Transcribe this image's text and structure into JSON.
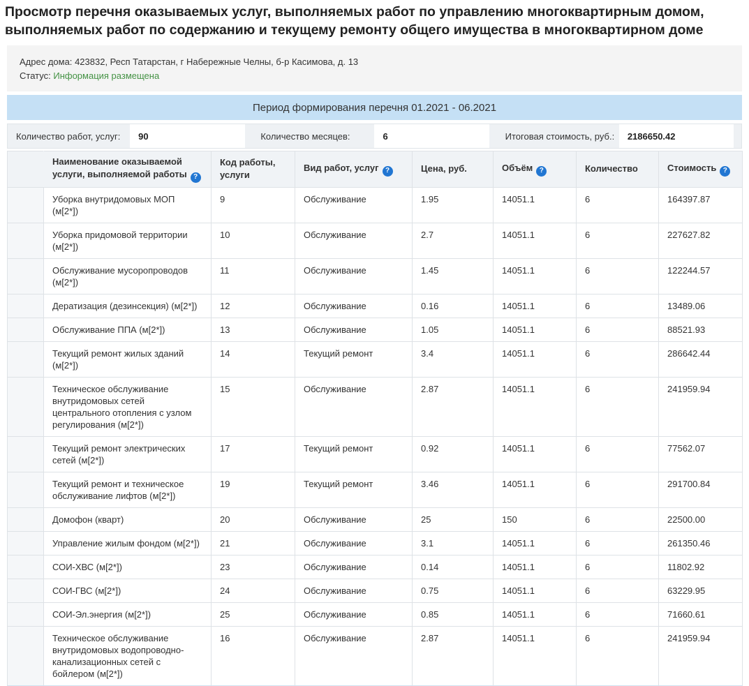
{
  "page": {
    "title": "Просмотр перечня оказываемых услуг, выполняемых работ по управлению многоквартирным домом, выполняемых работ по содержанию и текущему ремонту общего имущества в многоквартирном доме"
  },
  "info": {
    "address_label": "Адрес дома:",
    "address_value": "423832, Респ Татарстан, г Набережные Челны, б-р Касимова, д. 13",
    "status_label": "Статус:",
    "status_value": "Информация размещена"
  },
  "period": {
    "title": "Период формирования перечня 01.2021 - 06.2021"
  },
  "summary": {
    "fields": [
      {
        "label": "Количество работ, услуг:",
        "value": "90"
      },
      {
        "label": "Количество месяцев:",
        "value": "6"
      },
      {
        "label": "Итоговая стоимость, руб.:",
        "value": "2186650.42"
      }
    ]
  },
  "icons": {
    "help_glyph": "?"
  },
  "colors": {
    "period_band": "#c5e0f5",
    "help_icon": "#2176d2",
    "status_green": "#449244",
    "header_bg": "#f0f3f6"
  },
  "table": {
    "columns": [
      {
        "id": "name",
        "label": "Наименование оказываемой услуги, выполняемой работы",
        "help": true
      },
      {
        "id": "code",
        "label": "Код работы, услуги",
        "help": false
      },
      {
        "id": "type",
        "label": "Вид работ, услуг",
        "help": true
      },
      {
        "id": "price",
        "label": "Цена, руб.",
        "help": false
      },
      {
        "id": "volume",
        "label": "Объём",
        "help": true
      },
      {
        "id": "count",
        "label": "Количество",
        "help": false
      },
      {
        "id": "cost",
        "label": "Стоимость",
        "help": true
      }
    ],
    "rows": [
      {
        "name": "Уборка внутридомовых МОП (м[2*])",
        "code": "9",
        "type": "Обслуживание",
        "price": "1.95",
        "volume": "14051.1",
        "count": "6",
        "cost": "164397.87"
      },
      {
        "name": "Уборка придомовой территории (м[2*])",
        "code": "10",
        "type": "Обслуживание",
        "price": "2.7",
        "volume": "14051.1",
        "count": "6",
        "cost": "227627.82"
      },
      {
        "name": "Обслуживание мусоропроводов (м[2*])",
        "code": "11",
        "type": "Обслуживание",
        "price": "1.45",
        "volume": "14051.1",
        "count": "6",
        "cost": "122244.57"
      },
      {
        "name": "Дератизация (дезинсекция) (м[2*])",
        "code": "12",
        "type": "Обслуживание",
        "price": "0.16",
        "volume": "14051.1",
        "count": "6",
        "cost": "13489.06"
      },
      {
        "name": "Обслуживание ППА (м[2*])",
        "code": "13",
        "type": "Обслуживание",
        "price": "1.05",
        "volume": "14051.1",
        "count": "6",
        "cost": "88521.93"
      },
      {
        "name": "Текущий ремонт жилых зданий (м[2*])",
        "code": "14",
        "type": "Текущий ремонт",
        "price": "3.4",
        "volume": "14051.1",
        "count": "6",
        "cost": "286642.44"
      },
      {
        "name": "Техническое обслуживание внутридомовых сетей центрального отопления с узлом регулирования (м[2*])",
        "code": "15",
        "type": "Обслуживание",
        "price": "2.87",
        "volume": "14051.1",
        "count": "6",
        "cost": "241959.94"
      },
      {
        "name": "Текущий ремонт электрических сетей (м[2*])",
        "code": "17",
        "type": "Текущий ремонт",
        "price": "0.92",
        "volume": "14051.1",
        "count": "6",
        "cost": "77562.07"
      },
      {
        "name": "Текущий ремонт и техническое обслуживание лифтов (м[2*])",
        "code": "19",
        "type": "Текущий ремонт",
        "price": "3.46",
        "volume": "14051.1",
        "count": "6",
        "cost": "291700.84"
      },
      {
        "name": "Домофон (кварт)",
        "code": "20",
        "type": "Обслуживание",
        "price": "25",
        "volume": "150",
        "count": "6",
        "cost": "22500.00"
      },
      {
        "name": "Управление жилым фондом (м[2*])",
        "code": "21",
        "type": "Обслуживание",
        "price": "3.1",
        "volume": "14051.1",
        "count": "6",
        "cost": "261350.46"
      },
      {
        "name": "СОИ-ХВС (м[2*])",
        "code": "23",
        "type": "Обслуживание",
        "price": "0.14",
        "volume": "14051.1",
        "count": "6",
        "cost": "11802.92"
      },
      {
        "name": "СОИ-ГВС (м[2*])",
        "code": "24",
        "type": "Обслуживание",
        "price": "0.75",
        "volume": "14051.1",
        "count": "6",
        "cost": "63229.95"
      },
      {
        "name": "СОИ-Эл.энергия (м[2*])",
        "code": "25",
        "type": "Обслуживание",
        "price": "0.85",
        "volume": "14051.1",
        "count": "6",
        "cost": "71660.61"
      },
      {
        "name": "Техническое обслуживание внутридомовых водопроводно-канализационных сетей с бойлером (м[2*])",
        "code": "16",
        "type": "Обслуживание",
        "price": "2.87",
        "volume": "14051.1",
        "count": "6",
        "cost": "241959.94"
      }
    ]
  }
}
